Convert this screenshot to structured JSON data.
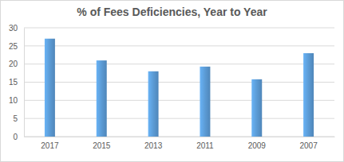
{
  "chart_data": {
    "type": "bar",
    "title": "% of Fees Deficiencies, Year to Year",
    "categories": [
      "2017",
      "2015",
      "2013",
      "2011",
      "2009",
      "2007"
    ],
    "values": [
      27,
      21,
      18,
      19.3,
      15.8,
      23
    ],
    "color": "#5b9bd5",
    "ylim": [
      0,
      30
    ],
    "yticks": [
      0,
      5,
      10,
      15,
      20,
      25,
      30
    ],
    "grid": true
  }
}
